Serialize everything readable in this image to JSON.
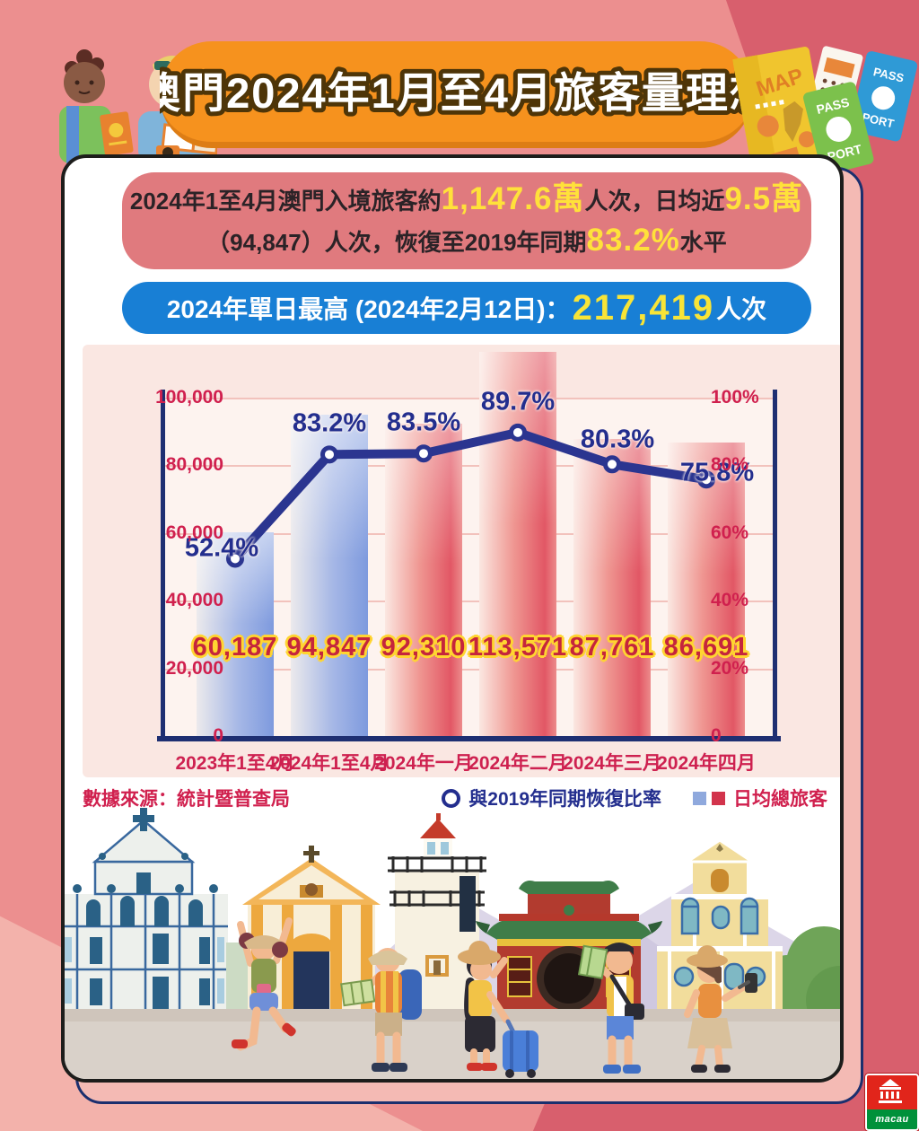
{
  "header": {
    "title": "澳門2024年1月至4月旅客量理想"
  },
  "decor": {
    "map_label": "MAP",
    "pass": "PASS",
    "port": "PORT"
  },
  "summary": {
    "line1": [
      {
        "t": "2024年1至4月澳門入境旅客約"
      },
      {
        "t": "1,147.6萬",
        "hl": true
      },
      {
        "t": "人次，日均近"
      },
      {
        "t": "9.5萬",
        "hl": true
      }
    ],
    "line2": [
      {
        "t": "（94,847）人次，恢復至2019年同期"
      },
      {
        "t": "83.2%",
        "hl": true
      },
      {
        "t": "水平"
      }
    ]
  },
  "record": [
    {
      "t": "2024年單日最高 (2024年2月12日)："
    },
    {
      "t": "217,419",
      "hl": true
    },
    {
      "t": "人次"
    }
  ],
  "chart_data": {
    "type": "bar+line",
    "title": "",
    "categories": [
      "2023年1至4月",
      "2024年1至4月",
      "2024年一月",
      "2024年二月",
      "2024年三月",
      "2024年四月"
    ],
    "series": [
      {
        "name": "日均總旅客",
        "type": "bar",
        "values": [
          60187,
          94847,
          92310,
          113571,
          87761,
          86691
        ],
        "value_labels": [
          "60,187",
          "94,847",
          "92,310",
          "113,571",
          "87,761",
          "86,691"
        ],
        "colors": [
          "blue",
          "blue",
          "red",
          "red",
          "red",
          "red"
        ]
      },
      {
        "name": "與2019年同期恢復比率",
        "type": "line",
        "values": [
          52.4,
          83.2,
          83.5,
          89.7,
          80.3,
          75.8
        ],
        "labels": [
          "52.4%",
          "83.2%",
          "83.5%",
          "89.7%",
          "80.3%",
          "75.8%"
        ],
        "label_offsets": [
          [
            -15,
            23
          ],
          [
            0,
            0
          ],
          [
            0,
            0
          ],
          [
            0,
            0
          ],
          [
            6,
            7
          ],
          [
            12,
            27
          ]
        ]
      }
    ],
    "left_axis": {
      "ticks": [
        "100,000",
        "80,000",
        "60,000",
        "40,000",
        "20,000",
        "0"
      ],
      "max": 100000
    },
    "right_axis": {
      "ticks": [
        "100%",
        "80%",
        "60%",
        "40%",
        "20%",
        "0"
      ],
      "max": 100
    },
    "grid": true,
    "legend_position": "bottom-right"
  },
  "legend": {
    "source": "數據來源：統計暨普查局",
    "line_label": "與2019年同期恢復比率",
    "bar_label": "日均總旅客"
  },
  "logo": {
    "text": "macau"
  },
  "colors": {
    "accent_orange": "#f6921e",
    "summary_pink": "#e07a7e",
    "pill_blue": "#187fd5",
    "highlight_yellow": "#ffe13a",
    "crimson": "#d0204e",
    "navy": "#232e8e",
    "bar_blue": "#7e9ade",
    "bar_red": "#e25765"
  }
}
